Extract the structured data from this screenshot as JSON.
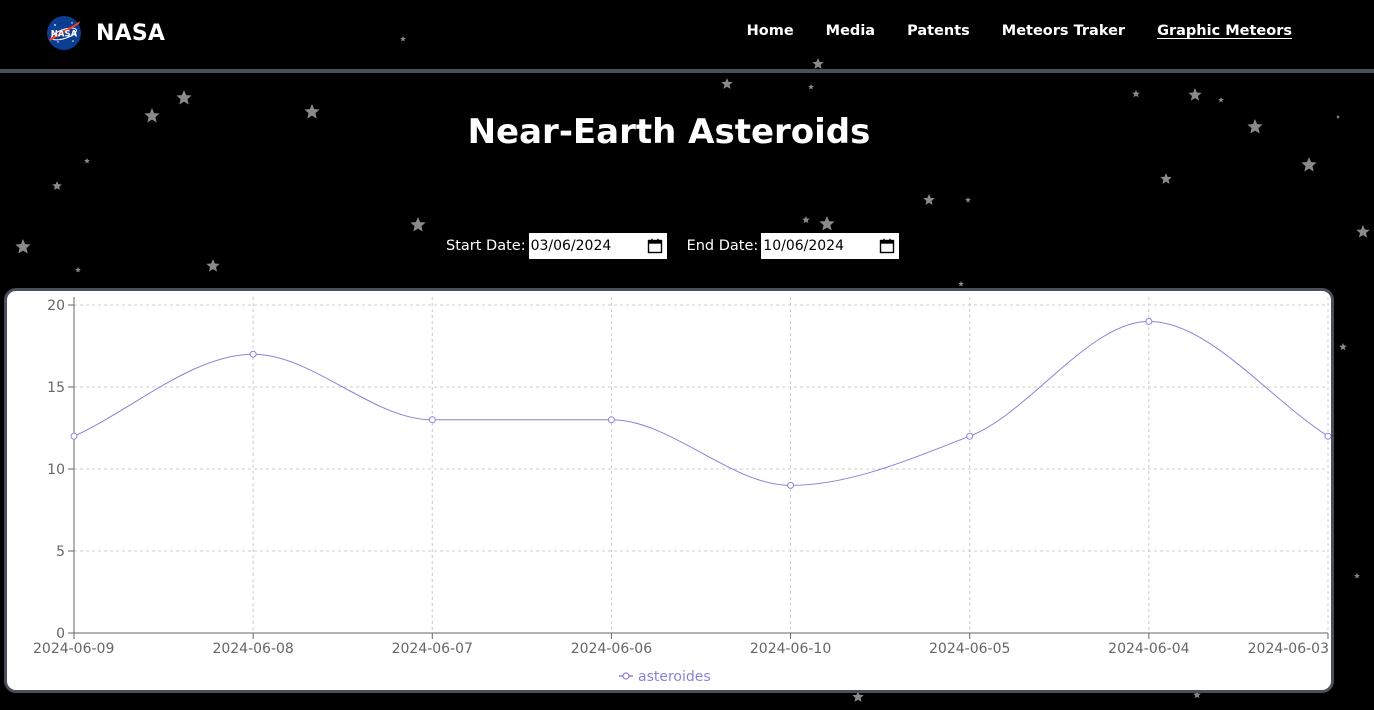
{
  "navbar": {
    "brand": "NASA",
    "logo_icon": "nasa-meatball-logo-icon",
    "links": [
      {
        "label": "Home",
        "active": false
      },
      {
        "label": "Media",
        "active": false
      },
      {
        "label": "Patents",
        "active": false
      },
      {
        "label": "Meteors Traker",
        "active": false
      },
      {
        "label": "Graphic Meteors",
        "active": true
      }
    ]
  },
  "page": {
    "title": "Near-Earth Asteroids",
    "background": "starfield",
    "background_color": "#000000"
  },
  "filters": {
    "start_label": "Start Date:",
    "start_value": "03/06/2024",
    "end_label": "End Date:",
    "end_value": "10/06/2024",
    "calendar_icon": "calendar-icon"
  },
  "chart_data": {
    "type": "line",
    "categories": [
      "2024-06-09",
      "2024-06-08",
      "2024-06-07",
      "2024-06-06",
      "2024-06-10",
      "2024-06-05",
      "2024-06-04",
      "2024-06-03"
    ],
    "series": [
      {
        "name": "asteroides",
        "values": [
          12,
          17,
          13,
          13,
          9,
          12,
          19,
          12
        ],
        "color": "#8884d8"
      }
    ],
    "yticks": [
      "0",
      "5",
      "10",
      "15",
      "20"
    ],
    "ylim": [
      0,
      20
    ],
    "grid": true,
    "legend_position": "bottom-center",
    "curve": "smooth"
  }
}
